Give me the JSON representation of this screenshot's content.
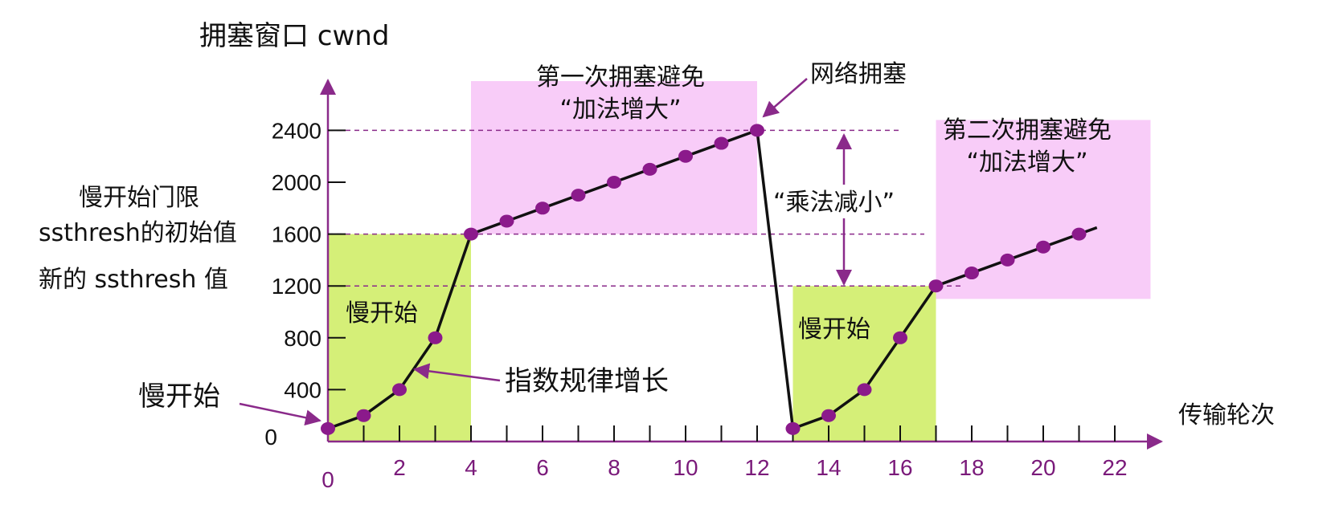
{
  "chart_data": {
    "type": "line",
    "ylabel": "拥塞窗口 cwnd",
    "xlabel": "传输轮次",
    "x_ticks": [
      0,
      2,
      4,
      6,
      8,
      10,
      12,
      14,
      16,
      18,
      20,
      22
    ],
    "y_ticks": [
      0,
      400,
      800,
      1200,
      1600,
      2000,
      2400
    ],
    "xlim": [
      0,
      24
    ],
    "ylim": [
      0,
      2700
    ],
    "series": [
      {
        "points": [
          [
            0,
            100
          ],
          [
            1,
            200
          ],
          [
            2,
            400
          ],
          [
            3,
            800
          ],
          [
            4,
            1600
          ],
          [
            5,
            1700
          ],
          [
            6,
            1800
          ],
          [
            7,
            1900
          ],
          [
            8,
            2000
          ],
          [
            9,
            2100
          ],
          [
            10,
            2200
          ],
          [
            11,
            2300
          ],
          [
            12,
            2400
          ],
          [
            13,
            100
          ],
          [
            14,
            200
          ],
          [
            15,
            400
          ],
          [
            16,
            800
          ],
          [
            17,
            1200
          ],
          [
            18,
            1300
          ],
          [
            19,
            1400
          ],
          [
            20,
            1500
          ],
          [
            21,
            1600
          ]
        ],
        "line_end": [
          21.5,
          1650
        ]
      }
    ],
    "threshold_lines": [
      2400,
      1600,
      1200
    ],
    "regions": [
      {
        "kind": "slow-start",
        "x": [
          0,
          4
        ],
        "y": [
          0,
          1600
        ],
        "color": "#d5ef78",
        "label": "慢开始"
      },
      {
        "kind": "slow-start",
        "x": [
          13,
          17
        ],
        "y": [
          0,
          1200
        ],
        "color": "#d5ef78",
        "label": "慢开始"
      },
      {
        "kind": "congestion-avoidance",
        "x": [
          4,
          12
        ],
        "y": [
          1600,
          2780
        ],
        "color": "#f8ccf8",
        "label_1": "第一次拥塞避免",
        "label_2": "“加法增大”"
      },
      {
        "kind": "congestion-avoidance",
        "x": [
          17,
          23
        ],
        "y": [
          1100,
          2480
        ],
        "color": "#f8ccf8",
        "label_1": "第二次拥塞避免",
        "label_2": "“加法增大”"
      }
    ],
    "annotations": {
      "network_congestion": "网络拥塞",
      "multiplicative_decrease": "“乘法减小”",
      "exponential_growth": "指数规律增长",
      "slow_start_left": "慢开始",
      "ssthresh_initial_1": "慢开始门限",
      "ssthresh_initial_2": "ssthresh的初始值",
      "ssthresh_new": "新的 ssthresh 值"
    },
    "colors": {
      "axis": "#8a2a8a",
      "line": "#111111",
      "marker": "#8b1a8b",
      "slow_start_fill": "#d5ef78",
      "avoidance_fill": "#f8ccf8"
    }
  }
}
